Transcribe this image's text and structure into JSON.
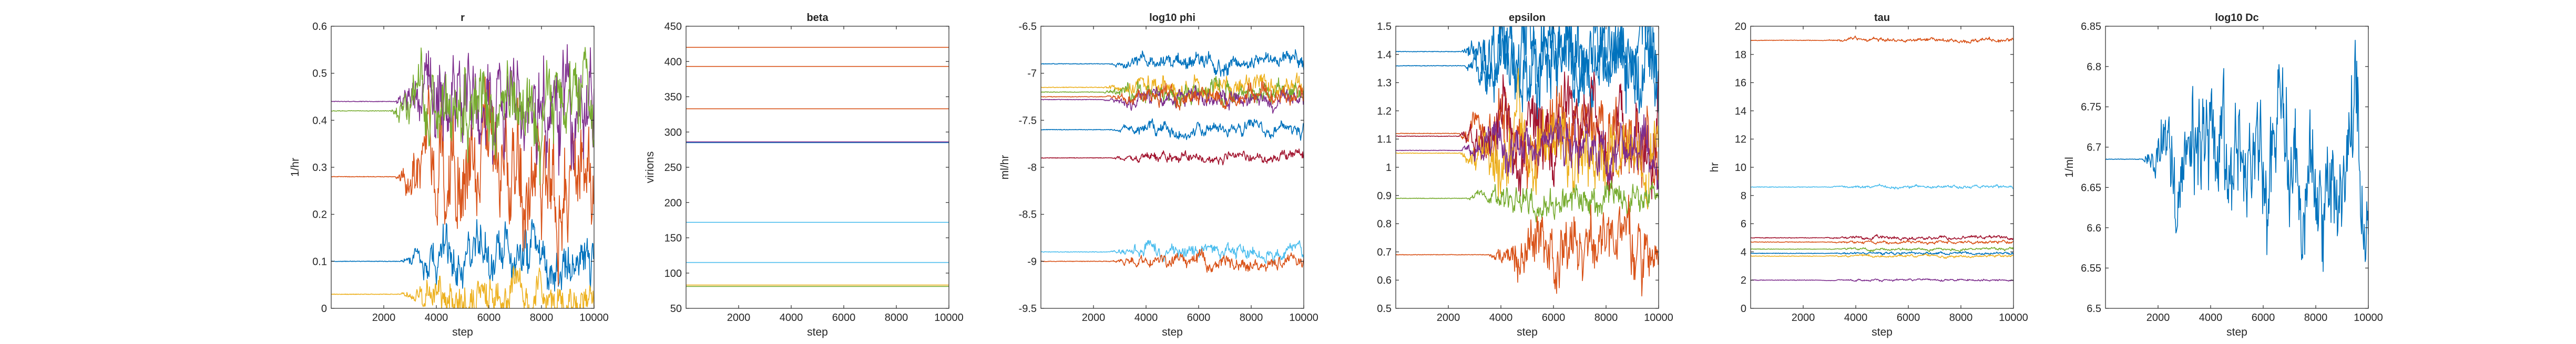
{
  "colors": {
    "blue": "#0072BD",
    "orange": "#D95319",
    "yellow": "#EDB120",
    "purple": "#7E2F8E",
    "green": "#77AC30",
    "cyan": "#4DBEEE",
    "maroon": "#A2142F"
  },
  "chart_data": [
    {
      "type": "line",
      "title": "r",
      "xlabel": "step",
      "ylabel": "1/hr",
      "xlim": [
        0,
        10000
      ],
      "ylim": [
        0,
        0.6
      ],
      "xticks": [
        2000,
        4000,
        6000,
        8000,
        10000
      ],
      "yticks": [
        0,
        0.1,
        0.2,
        0.3,
        0.4,
        0.5,
        0.6
      ],
      "ytick_labels": [
        "0",
        "0.1",
        "0.2",
        "0.3",
        "0.4",
        "0.5",
        "0.6"
      ],
      "series": [
        {
          "color": "blue",
          "start": 0.1,
          "burnin": 2600,
          "noise": 0.03
        },
        {
          "color": "orange",
          "start": 0.28,
          "burnin": 2400,
          "noise": 0.07
        },
        {
          "color": "yellow",
          "start": 0.03,
          "burnin": 2600,
          "noise": 0.025
        },
        {
          "color": "purple",
          "start": 0.44,
          "burnin": 2400,
          "noise": 0.06
        },
        {
          "color": "green",
          "start": 0.42,
          "burnin": 2200,
          "noise": 0.05
        }
      ]
    },
    {
      "type": "line",
      "title": "beta",
      "xlabel": "step",
      "ylabel": "virions",
      "xlim": [
        0,
        10000
      ],
      "ylim": [
        50,
        450
      ],
      "xticks": [
        2000,
        4000,
        6000,
        8000,
        10000
      ],
      "yticks": [
        50,
        100,
        150,
        200,
        250,
        300,
        350,
        400,
        450
      ],
      "ytick_labels": [
        "50",
        "100",
        "150",
        "200",
        "250",
        "300",
        "350",
        "400",
        "450"
      ],
      "series": [
        {
          "color": "orange",
          "start": 420,
          "burnin": 10000,
          "noise": 0
        },
        {
          "color": "orange",
          "start": 393,
          "burnin": 10000,
          "noise": 0
        },
        {
          "color": "orange",
          "start": 333,
          "burnin": 10000,
          "noise": 0
        },
        {
          "color": "blue",
          "start": 285,
          "burnin": 10000,
          "noise": 0
        },
        {
          "color": "purple",
          "start": 286,
          "burnin": 10000,
          "noise": 0
        },
        {
          "color": "cyan",
          "start": 172,
          "burnin": 10000,
          "noise": 0
        },
        {
          "color": "cyan",
          "start": 115,
          "burnin": 10000,
          "noise": 0
        },
        {
          "color": "yellow",
          "start": 83,
          "burnin": 10000,
          "noise": 0
        },
        {
          "color": "green",
          "start": 81,
          "burnin": 10000,
          "noise": 0
        }
      ]
    },
    {
      "type": "line",
      "title": "log10 phi",
      "xlabel": "step",
      "ylabel": "ml/hr",
      "xlim": [
        0,
        10000
      ],
      "ylim": [
        -9.5,
        -6.5
      ],
      "xticks": [
        2000,
        4000,
        6000,
        8000,
        10000
      ],
      "yticks": [
        -9.5,
        -9,
        -8.5,
        -8,
        -7.5,
        -7,
        -6.5
      ],
      "ytick_labels": [
        "-9.5",
        "-9",
        "-8.5",
        "-8",
        "-7.5",
        "-7",
        "-6.5"
      ],
      "series": [
        {
          "color": "blue",
          "start": -6.9,
          "burnin": 2500,
          "noise": 0.05
        },
        {
          "color": "yellow",
          "start": -7.15,
          "burnin": 2300,
          "noise": 0.06
        },
        {
          "color": "green",
          "start": -7.2,
          "burnin": 2300,
          "noise": 0.06
        },
        {
          "color": "purple",
          "start": -7.28,
          "burnin": 2300,
          "noise": 0.05
        },
        {
          "color": "orange",
          "start": -7.25,
          "burnin": 2400,
          "noise": 0.05
        },
        {
          "color": "blue",
          "start": -7.6,
          "burnin": 2500,
          "noise": 0.04
        },
        {
          "color": "maroon",
          "start": -7.9,
          "burnin": 2500,
          "noise": 0.03
        },
        {
          "color": "cyan",
          "start": -8.9,
          "burnin": 2500,
          "noise": 0.04
        },
        {
          "color": "orange",
          "start": -9.0,
          "burnin": 2500,
          "noise": 0.04
        }
      ]
    },
    {
      "type": "line",
      "title": "epsilon",
      "xlabel": "step",
      "ylabel": "",
      "xlim": [
        0,
        10000
      ],
      "ylim": [
        0.5,
        1.5
      ],
      "xticks": [
        2000,
        4000,
        6000,
        8000,
        10000
      ],
      "yticks": [
        0.5,
        0.6,
        0.7,
        0.8,
        0.9,
        1.0,
        1.1,
        1.2,
        1.3,
        1.4,
        1.5
      ],
      "ytick_labels": [
        "0.5",
        "0.6",
        "0.7",
        "0.8",
        "0.9",
        "1",
        "1.1",
        "1.2",
        "1.3",
        "1.4",
        "1.5"
      ],
      "series": [
        {
          "color": "blue",
          "start": 1.41,
          "burnin": 2500,
          "noise": 0.1
        },
        {
          "color": "blue",
          "start": 1.36,
          "burnin": 2600,
          "noise": 0.08
        },
        {
          "color": "orange",
          "start": 1.12,
          "burnin": 2400,
          "noise": 0.08
        },
        {
          "color": "maroon",
          "start": 1.11,
          "burnin": 2400,
          "noise": 0.08
        },
        {
          "color": "yellow",
          "start": 1.05,
          "burnin": 2400,
          "noise": 0.07
        },
        {
          "color": "purple",
          "start": 1.06,
          "burnin": 2400,
          "noise": 0.05
        },
        {
          "color": "green",
          "start": 0.89,
          "burnin": 2600,
          "noise": 0.03
        },
        {
          "color": "orange",
          "start": 0.69,
          "burnin": 3500,
          "noise": 0.06
        }
      ]
    },
    {
      "type": "line",
      "title": "tau",
      "xlabel": "step",
      "ylabel": "hr",
      "xlim": [
        0,
        10000
      ],
      "ylim": [
        0,
        20
      ],
      "xticks": [
        2000,
        4000,
        6000,
        8000,
        10000
      ],
      "yticks": [
        0,
        2,
        4,
        6,
        8,
        10,
        12,
        14,
        16,
        18,
        20
      ],
      "ytick_labels": [
        "0",
        "2",
        "4",
        "6",
        "8",
        "10",
        "12",
        "14",
        "16",
        "18",
        "20"
      ],
      "series": [
        {
          "color": "orange",
          "start": 19.0,
          "burnin": 2500,
          "noise": 0.08
        },
        {
          "color": "cyan",
          "start": 8.6,
          "burnin": 2500,
          "noise": 0.06
        },
        {
          "color": "maroon",
          "start": 5.0,
          "burnin": 2500,
          "noise": 0.07
        },
        {
          "color": "orange",
          "start": 4.7,
          "burnin": 2500,
          "noise": 0.06
        },
        {
          "color": "green",
          "start": 4.2,
          "burnin": 2500,
          "noise": 0.05
        },
        {
          "color": "blue",
          "start": 3.9,
          "burnin": 2500,
          "noise": 0.05
        },
        {
          "color": "yellow",
          "start": 3.7,
          "burnin": 2500,
          "noise": 0.05
        },
        {
          "color": "purple",
          "start": 2.0,
          "burnin": 2500,
          "noise": 0.04
        }
      ]
    },
    {
      "type": "line",
      "title": "log10 Dc",
      "xlabel": "step",
      "ylabel": "1/ml",
      "xlim": [
        0,
        10000
      ],
      "ylim": [
        6.5,
        6.85
      ],
      "xticks": [
        2000,
        4000,
        6000,
        8000,
        10000
      ],
      "yticks": [
        6.5,
        6.55,
        6.6,
        6.65,
        6.7,
        6.75,
        6.8,
        6.85
      ],
      "ytick_labels": [
        "6.5",
        "6.55",
        "6.6",
        "6.65",
        "6.7",
        "6.75",
        "6.8",
        "6.85"
      ],
      "series": [
        {
          "color": "blue",
          "start": 6.685,
          "burnin": 1400,
          "noise": 0.045
        }
      ]
    }
  ]
}
